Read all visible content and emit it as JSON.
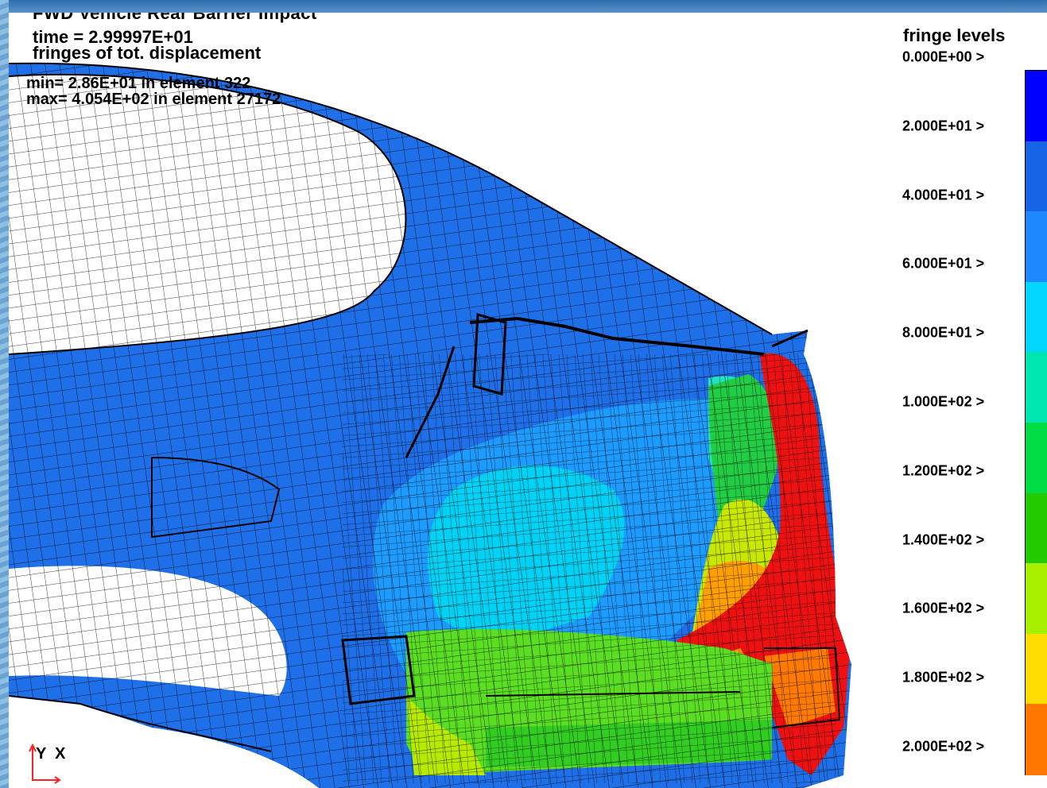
{
  "header": {
    "title": "FWD Vehicle Rear Barrier Impact",
    "time": "time =  2.99997E+01",
    "fringes": "fringes of tot. displacement",
    "min": "min= 2.86E+01 in element 322",
    "max": "max= 4.054E+02 in element 27172"
  },
  "legend": {
    "title": "fringe levels",
    "levels": [
      "0.000E+00 >",
      "2.000E+01 >",
      "4.000E+01 >",
      "6.000E+01 >",
      "8.000E+01 >",
      "1.000E+02 >",
      "1.200E+02 >",
      "1.400E+02 >",
      "1.600E+02 >",
      "1.800E+02 >",
      "2.000E+02 >"
    ],
    "colors": [
      "#0000ff",
      "#1565e6",
      "#1e88ff",
      "#00d6ff",
      "#00e6b0",
      "#00dd44",
      "#22cc00",
      "#a8f000",
      "#ffdd00",
      "#ff7700",
      "#ff0000"
    ]
  },
  "axis": {
    "up": "Y",
    "side": "X"
  }
}
